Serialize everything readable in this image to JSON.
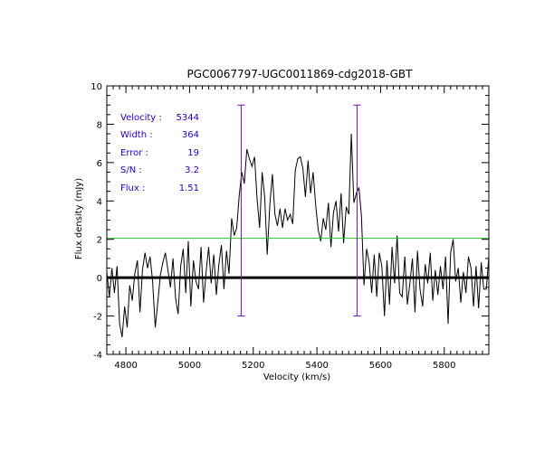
{
  "chart_data": {
    "type": "line",
    "title": "PGC0067797-UGC0011869-cdg2018-GBT",
    "xlabel": "Velocity (km/s)",
    "ylabel": "Flux density (mJy)",
    "xlim": [
      4740,
      5940
    ],
    "ylim": [
      -4,
      10
    ],
    "x_ticks": [
      4800,
      5000,
      5200,
      5400,
      5600,
      5800
    ],
    "x_tick_labels": [
      "4800",
      "5000",
      "5200",
      "5400",
      "5600",
      "5800"
    ],
    "y_ticks": [
      -4,
      -2,
      0,
      2,
      4,
      6,
      8,
      10
    ],
    "y_tick_labels": [
      "-4",
      "-2",
      "0",
      "2",
      "4",
      "6",
      "8",
      "10"
    ],
    "baseline": 0,
    "reference_level": 2.05,
    "width_markers": {
      "low": 5162,
      "high": 5526,
      "y_top": 9.0,
      "y_bottom": -2.0
    },
    "annotations": [
      {
        "label": "Velocity :",
        "value": "5344"
      },
      {
        "label": "Width :",
        "value": "364"
      },
      {
        "label": "Error :",
        "value": "19"
      },
      {
        "label": "S/N :",
        "value": "3.2"
      },
      {
        "label": "Flux :",
        "value": "1.51"
      }
    ],
    "series": [
      {
        "name": "spectrum",
        "x": [
          4740,
          4748,
          4756,
          4764,
          4772,
          4780,
          4788,
          4796,
          4804,
          4812,
          4820,
          4828,
          4836,
          4844,
          4852,
          4860,
          4868,
          4876,
          4884,
          4892,
          4900,
          4908,
          4916,
          4924,
          4932,
          4940,
          4948,
          4956,
          4964,
          4972,
          4980,
          4988,
          4996,
          5004,
          5012,
          5020,
          5028,
          5036,
          5044,
          5052,
          5060,
          5068,
          5076,
          5084,
          5092,
          5100,
          5108,
          5116,
          5124,
          5132,
          5140,
          5148,
          5156,
          5164,
          5172,
          5180,
          5188,
          5196,
          5204,
          5212,
          5220,
          5228,
          5236,
          5244,
          5252,
          5260,
          5268,
          5276,
          5284,
          5292,
          5300,
          5308,
          5316,
          5324,
          5332,
          5340,
          5348,
          5356,
          5364,
          5372,
          5380,
          5388,
          5396,
          5404,
          5412,
          5420,
          5428,
          5436,
          5444,
          5452,
          5460,
          5468,
          5476,
          5484,
          5492,
          5500,
          5508,
          5516,
          5524,
          5532,
          5540,
          5548,
          5556,
          5564,
          5572,
          5580,
          5588,
          5596,
          5604,
          5612,
          5620,
          5628,
          5636,
          5644,
          5652,
          5660,
          5668,
          5676,
          5684,
          5692,
          5700,
          5708,
          5716,
          5724,
          5732,
          5740,
          5748,
          5756,
          5764,
          5772,
          5780,
          5788,
          5796,
          5804,
          5812,
          5820,
          5828,
          5836,
          5844,
          5852,
          5860,
          5868,
          5876,
          5884,
          5892,
          5900,
          5908,
          5916,
          5924,
          5932,
          5940
        ],
        "y": [
          0.3,
          -1.0,
          0.5,
          -0.8,
          0.6,
          -2.4,
          -3.1,
          -1.5,
          -2.6,
          -0.4,
          -1.2,
          0.2,
          0.9,
          -1.8,
          0.4,
          1.3,
          0.5,
          1.1,
          -0.2,
          -2.6,
          -1.3,
          0.1,
          0.8,
          1.3,
          0.4,
          -0.5,
          1.0,
          -1.1,
          -1.9,
          0.6,
          1.5,
          -0.8,
          1.9,
          -1.5,
          0.9,
          -0.2,
          -0.6,
          1.6,
          -1.3,
          0.3,
          1.6,
          -0.3,
          1.2,
          -0.9,
          0.7,
          1.7,
          -0.6,
          1.4,
          0.2,
          3.1,
          2.2,
          2.6,
          4.3,
          5.5,
          4.9,
          6.7,
          6.2,
          5.8,
          6.3,
          4.1,
          2.6,
          5.5,
          4.2,
          1.2,
          3.8,
          5.4,
          3.3,
          2.7,
          3.6,
          2.6,
          3.6,
          3.0,
          3.3,
          2.8,
          5.6,
          6.2,
          6.3,
          5.7,
          4.2,
          6.1,
          4.4,
          5.5,
          3.8,
          2.5,
          1.9,
          3.1,
          2.5,
          3.9,
          1.6,
          3.4,
          4.0,
          2.4,
          4.4,
          1.8,
          3.7,
          3.3,
          7.5,
          3.9,
          4.4,
          4.7,
          3.2,
          -0.4,
          1.5,
          0.8,
          -0.8,
          1.2,
          -1.0,
          1.3,
          0.6,
          -2.0,
          0.9,
          -1.4,
          1.6,
          -0.3,
          2.2,
          -0.8,
          -1.0,
          1.1,
          -1.4,
          -0.3,
          1.0,
          -1.8,
          1.4,
          -0.6,
          -1.5,
          0.7,
          -0.3,
          1.3,
          -1.2,
          0.4,
          -0.9,
          0.6,
          -0.6,
          1.1,
          -2.4,
          1.3,
          2.0,
          -0.2,
          0.5,
          -1.3,
          0.3,
          -0.8,
          1.1,
          0.5,
          -1.5,
          0.6,
          -1.6,
          0.8,
          -0.6,
          -0.6,
          1.1
        ]
      }
    ]
  }
}
